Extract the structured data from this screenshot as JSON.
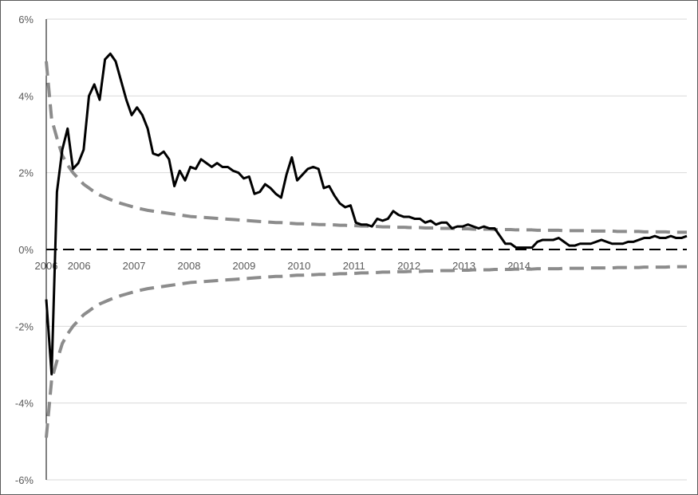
{
  "chart_data": {
    "type": "line",
    "title": "",
    "xlabel": "",
    "ylabel": "",
    "ylim": [
      -6,
      6
    ],
    "y_ticks": [
      "6%",
      "4%",
      "2%",
      "0%",
      "-2%",
      "-4%",
      "-6%"
    ],
    "x_ticks": [
      "2006",
      "2006",
      "2007",
      "2008",
      "2009",
      "2010",
      "2011",
      "2012",
      "2013",
      "2014"
    ],
    "grid": true,
    "legend": "none",
    "colors": {
      "series": "#000000",
      "bands": "#8c8c8c",
      "zero_line": "#000000",
      "grid": "#d9d9d9"
    },
    "series": [
      {
        "values": [
          -1.3,
          -3.25,
          1.5,
          2.6,
          3.15,
          2.1,
          2.25,
          2.6,
          4.0,
          4.3,
          3.9,
          4.95,
          5.1,
          4.9,
          4.4,
          3.9,
          3.5,
          3.7,
          3.5,
          3.15,
          2.5,
          2.45,
          2.55,
          2.35,
          1.65,
          2.05,
          1.8,
          2.15,
          2.1,
          2.35,
          2.25,
          2.15,
          2.25,
          2.15,
          2.15,
          2.05,
          2.0,
          1.85,
          1.9,
          1.45,
          1.5,
          1.7,
          1.6,
          1.45,
          1.35,
          1.95,
          2.4,
          1.8,
          1.95,
          2.1,
          2.15,
          2.1,
          1.6,
          1.65,
          1.4,
          1.2,
          1.1,
          1.15,
          0.7,
          0.65,
          0.65,
          0.6,
          0.8,
          0.75,
          0.8,
          1.0,
          0.9,
          0.85,
          0.85,
          0.8,
          0.8,
          0.7,
          0.75,
          0.65,
          0.7,
          0.7,
          0.55,
          0.6,
          0.6,
          0.65,
          0.6,
          0.55,
          0.6,
          0.55,
          0.55,
          0.35,
          0.15,
          0.15,
          0.05,
          0.05,
          0.05,
          0.05,
          0.2,
          0.25,
          0.25,
          0.25,
          0.3,
          0.2,
          0.1,
          0.1,
          0.15,
          0.15,
          0.15,
          0.2,
          0.25,
          0.2,
          0.15,
          0.15,
          0.15,
          0.2,
          0.2,
          0.25,
          0.3,
          0.3,
          0.35,
          0.3,
          0.3,
          0.35,
          0.3,
          0.3,
          0.35
        ]
      }
    ],
    "bands": {
      "upper": [
        4.9,
        3.4,
        2.9,
        2.45,
        2.2,
        2.0,
        1.85,
        1.7,
        1.6,
        1.5,
        1.42,
        1.36,
        1.3,
        1.25,
        1.2,
        1.16,
        1.12,
        1.08,
        1.05,
        1.02,
        1.0,
        0.98,
        0.96,
        0.94,
        0.92,
        0.9,
        0.88,
        0.86,
        0.85,
        0.84,
        0.83,
        0.82,
        0.81,
        0.8,
        0.79,
        0.78,
        0.77,
        0.76,
        0.75,
        0.74,
        0.73,
        0.72,
        0.71,
        0.7,
        0.7,
        0.69,
        0.68,
        0.67,
        0.67,
        0.66,
        0.66,
        0.65,
        0.65,
        0.64,
        0.64,
        0.63,
        0.63,
        0.62,
        0.62,
        0.61,
        0.61,
        0.6,
        0.6,
        0.59,
        0.59,
        0.58,
        0.58,
        0.58,
        0.57,
        0.57,
        0.57,
        0.56,
        0.56,
        0.56,
        0.55,
        0.55,
        0.55,
        0.54,
        0.54,
        0.54,
        0.53,
        0.53,
        0.53,
        0.53,
        0.52,
        0.52,
        0.52,
        0.52,
        0.51,
        0.51,
        0.51,
        0.51,
        0.5,
        0.5,
        0.5,
        0.5,
        0.5,
        0.49,
        0.49,
        0.49,
        0.49,
        0.49,
        0.48,
        0.48,
        0.48,
        0.48,
        0.48,
        0.47,
        0.47,
        0.47,
        0.47,
        0.47,
        0.46,
        0.46,
        0.46,
        0.46,
        0.46,
        0.45,
        0.45,
        0.45,
        0.45
      ]
    }
  }
}
